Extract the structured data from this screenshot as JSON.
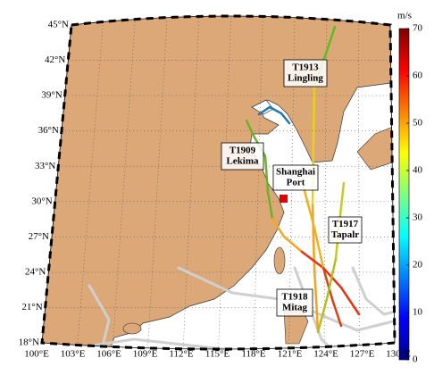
{
  "map": {
    "lat_labels": [
      "45°N",
      "42°N",
      "39°N",
      "36°N",
      "33°N",
      "30°N",
      "27°N",
      "24°N",
      "21°N",
      "18°N"
    ],
    "lon_labels": [
      "100°E",
      "103°E",
      "106°E",
      "109°E",
      "112°E",
      "115°E",
      "118°E",
      "121°E",
      "124°E",
      "127°E",
      "130°E"
    ],
    "colorbar": {
      "unit": "m/s",
      "ticks": [
        0,
        10,
        20,
        30,
        40,
        50,
        60,
        70
      ]
    },
    "annotations": [
      {
        "lines": [
          "T1913",
          "Lingling"
        ]
      },
      {
        "lines": [
          "T1909",
          "Lekima"
        ]
      },
      {
        "lines": [
          "Shanghai",
          "Port"
        ]
      },
      {
        "lines": [
          "T1917",
          "Tapalr"
        ]
      },
      {
        "lines": [
          "T1918",
          "Mitag"
        ]
      }
    ]
  }
}
